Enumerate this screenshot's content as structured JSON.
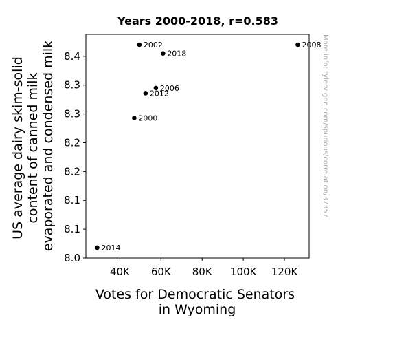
{
  "chart_data": {
    "type": "scatter",
    "title": "Years 2000-2018, r=0.583",
    "xlabel": [
      "Votes for Democratic Senators",
      "in Wyoming"
    ],
    "ylabel": [
      "US average dairy skim-solid",
      "content of canned milk",
      "evaporated and condensed milk"
    ],
    "x_ticks": [
      {
        "value": 40000,
        "label": "40K"
      },
      {
        "value": 60000,
        "label": "60K"
      },
      {
        "value": 80000,
        "label": "80K"
      },
      {
        "value": 100000,
        "label": "100K"
      },
      {
        "value": 120000,
        "label": "120K"
      }
    ],
    "y_ticks": [
      {
        "value": 8.0,
        "label": "8.0"
      },
      {
        "value": 8.05,
        "label": "8.1"
      },
      {
        "value": 8.1,
        "label": "8.1"
      },
      {
        "value": 8.15,
        "label": "8.2"
      },
      {
        "value": 8.2,
        "label": "8.2"
      },
      {
        "value": 8.25,
        "label": "8.3"
      },
      {
        "value": 8.3,
        "label": "8.3"
      },
      {
        "value": 8.35,
        "label": "8.4"
      }
    ],
    "xlim": [
      23500,
      132000
    ],
    "ylim": [
      8.0,
      8.388
    ],
    "points": [
      {
        "label": "2000",
        "x": 47000,
        "y": 8.243
      },
      {
        "label": "2002",
        "x": 49500,
        "y": 8.37
      },
      {
        "label": "2006",
        "x": 57500,
        "y": 8.295
      },
      {
        "label": "2008",
        "x": 126500,
        "y": 8.37
      },
      {
        "label": "2012",
        "x": 52500,
        "y": 8.286
      },
      {
        "label": "2014",
        "x": 29000,
        "y": 8.018
      },
      {
        "label": "2018",
        "x": 61000,
        "y": 8.355
      }
    ],
    "marker_color": "#000000",
    "grid": false,
    "legend": "none"
  },
  "watermark": "More info: tylervigen.com/spurious/correlation/37357"
}
